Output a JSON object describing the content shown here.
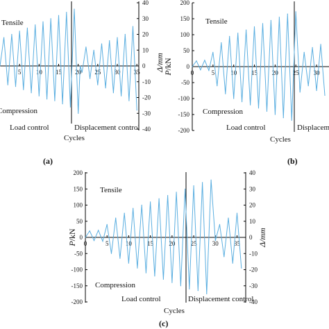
{
  "colors": {
    "wave": "#5aaee0",
    "axis": "#000000",
    "text": "#111111"
  },
  "chart_data": [
    {
      "panel": "a",
      "type": "line",
      "panel_label": "(a)",
      "xlabel": "Cycles",
      "y2label": "Δ/mm",
      "x_ticks": [
        "5",
        "10",
        "15",
        "20",
        "25",
        "30",
        "35"
      ],
      "y2_ticks": [
        "40",
        "30",
        "20",
        "10",
        "0",
        "-10",
        "-20",
        "-30",
        "-40"
      ],
      "xlim": [
        0,
        35.5
      ],
      "y2lim": [
        -40,
        40
      ],
      "load_control_end": 20.5,
      "annotations": {
        "tensile": "Tensile",
        "compression": "Compression",
        "load_control": "Load control",
        "displacement_control": "Displacement control"
      },
      "series": [
        {
          "x": [
            0,
            1,
            2,
            3,
            4,
            5,
            6,
            7,
            8,
            9,
            10,
            11,
            12,
            13,
            14,
            15,
            16,
            17,
            18,
            19,
            20,
            20.5,
            21,
            22,
            23,
            24,
            25,
            26,
            27,
            28,
            29,
            30,
            31,
            32,
            33,
            34,
            35
          ],
          "y": [
            0,
            18,
            -12,
            20,
            -13,
            22,
            -15,
            24,
            -17,
            26,
            -19,
            28,
            -21,
            30,
            -22,
            32,
            -24,
            34,
            -26,
            36,
            -30,
            0,
            -4,
            12,
            -8,
            10,
            -12,
            14,
            -14,
            16,
            -17,
            18,
            -19,
            20,
            -22,
            25,
            -28
          ]
        }
      ]
    },
    {
      "panel": "b",
      "type": "line",
      "panel_label": "(b)",
      "xlabel": "Cycles",
      "ylabel": "P/kN",
      "x_ticks": [
        "0",
        "5",
        "10",
        "15",
        "20",
        "25",
        "30"
      ],
      "y_ticks": [
        "200",
        "150",
        "100",
        "50",
        "0",
        "-50",
        "-100",
        "-150",
        "-200"
      ],
      "xlim": [
        0,
        33
      ],
      "ylim": [
        -200,
        200
      ],
      "load_control_end": 25,
      "annotations": {
        "tensile": "Tensile",
        "compression": "Compression",
        "load_control": "Load control",
        "displacement_control": "Displacement"
      },
      "series": [
        {
          "x": [
            0,
            1,
            2,
            3,
            4,
            5,
            6,
            7,
            8,
            9,
            10,
            11,
            12,
            13,
            14,
            15,
            16,
            17,
            18,
            19,
            20,
            21,
            22,
            23,
            24,
            25,
            26,
            27,
            28,
            29,
            30,
            31,
            32
          ],
          "y": [
            0,
            18,
            -10,
            20,
            -12,
            45,
            -60,
            75,
            -85,
            95,
            -100,
            105,
            -110,
            115,
            -120,
            125,
            -130,
            135,
            -140,
            145,
            -150,
            155,
            -160,
            165,
            -168,
            172,
            -80,
            45,
            -60,
            60,
            -75,
            70,
            -90
          ]
        }
      ]
    },
    {
      "panel": "c",
      "type": "line",
      "panel_label": "(c)",
      "xlabel": "Cycles",
      "ylabel": "P/kN",
      "y2label": "Δ/mm",
      "x_ticks": [
        "0",
        "5",
        "10",
        "15",
        "20",
        "25",
        "30",
        "35"
      ],
      "y_ticks": [
        "200",
        "150",
        "100",
        "50",
        "0",
        "-50",
        "-100",
        "-150",
        "-200"
      ],
      "y2_ticks": [
        "40",
        "30",
        "20",
        "10",
        "0",
        "-10",
        "-20",
        "-30",
        "-40"
      ],
      "xlim": [
        0,
        37
      ],
      "ylim": [
        -200,
        200
      ],
      "y2lim": [
        -40,
        40
      ],
      "load_control_end": 29,
      "annotations": {
        "tensile": "Tensile",
        "compression": "Compression",
        "load_control": "Load control",
        "displacement_control": "Displacement control"
      },
      "series": [
        {
          "x": [
            0,
            1,
            2,
            3,
            4,
            5,
            6,
            7,
            8,
            9,
            10,
            11,
            12,
            13,
            14,
            15,
            16,
            17,
            18,
            19,
            20,
            21,
            22,
            23,
            24,
            25,
            26,
            27,
            28,
            29,
            30,
            31,
            32,
            33,
            34,
            35,
            36
          ],
          "y": [
            0,
            20,
            -10,
            22,
            -12,
            40,
            -50,
            60,
            -65,
            75,
            -80,
            90,
            -95,
            100,
            -110,
            110,
            -120,
            120,
            -130,
            130,
            -140,
            140,
            -150,
            150,
            -160,
            160,
            -165,
            170,
            -175,
            178,
            -10,
            40,
            -60,
            60,
            -80,
            75,
            -95
          ]
        }
      ]
    }
  ]
}
